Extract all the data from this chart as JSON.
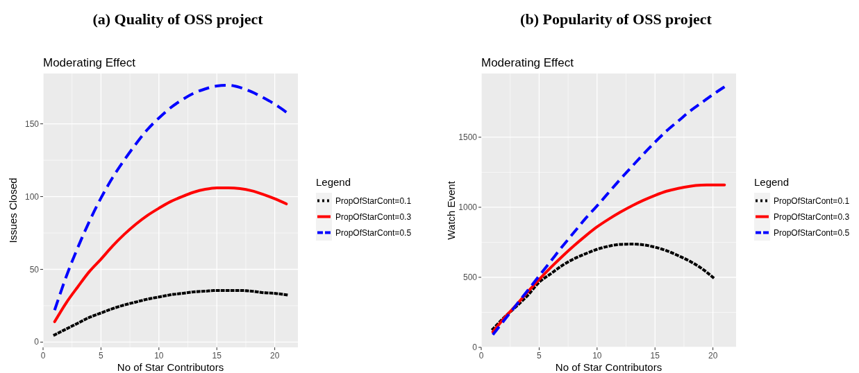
{
  "chart_data": [
    {
      "type": "line",
      "title": "(a) Quality of OSS project",
      "subtitle": "Moderating Effect",
      "xlabel": "No of Star Contributors",
      "ylabel": "Issues Closed",
      "legend_title": "Legend",
      "legend": "right",
      "grid": true,
      "xlim": [
        0,
        22
      ],
      "xticks": [
        0,
        5,
        10,
        15,
        20
      ],
      "ylim": [
        -3.6,
        184.6
      ],
      "yticks": [
        0,
        50,
        100,
        150
      ],
      "x": [
        1,
        2,
        3,
        4,
        5,
        6,
        7,
        8,
        9,
        10,
        11,
        12,
        13,
        14,
        15,
        16,
        17,
        18,
        19,
        20,
        21
      ],
      "series": [
        {
          "name": "PropOfStarCont=0.1",
          "color": "#000000",
          "line_style": "dotted",
          "values": [
            5,
            9,
            13,
            17,
            20,
            23,
            25.5,
            27.5,
            29.5,
            31,
            32.5,
            33.5,
            34.5,
            35,
            35.5,
            35.5,
            35.5,
            35,
            34,
            33.5,
            32.5
          ]
        },
        {
          "name": "PropOfStarCont=0.3",
          "color": "#ff0000",
          "line_style": "solid",
          "values": [
            14,
            27,
            38,
            48.5,
            57,
            66,
            74,
            81,
            87,
            92,
            96.5,
            100,
            103,
            105,
            106,
            106,
            105.5,
            104,
            101.5,
            98.5,
            95
          ]
        },
        {
          "name": "PropOfStarCont=0.5",
          "color": "#0000ff",
          "line_style": "dashed",
          "values": [
            22,
            45,
            65,
            83,
            99,
            113,
            125,
            136,
            146,
            154,
            161,
            166.5,
            171,
            174,
            176,
            176.5,
            175,
            172,
            168,
            163.5,
            158
          ]
        }
      ]
    },
    {
      "type": "line",
      "title": "(b) Popularity of OSS project",
      "subtitle": "Moderating Effect",
      "xlabel": "No of Star Contributors",
      "ylabel": "Watch Event",
      "legend_title": "Legend",
      "legend": "right",
      "grid": true,
      "xlim": [
        0,
        22
      ],
      "xticks": [
        0,
        5,
        10,
        15,
        20
      ],
      "ylim": [
        0,
        1955
      ],
      "yticks": [
        0,
        500,
        1000,
        1500
      ],
      "series": [
        {
          "name": "PropOfStarCont=0.1",
          "color": "#000000",
          "line_style": "dotted",
          "x": [
            1,
            2,
            3,
            4,
            5,
            6,
            7,
            8,
            9,
            10,
            11,
            12,
            13,
            14,
            15,
            16,
            17,
            18,
            19,
            20
          ],
          "values": [
            130,
            215,
            290,
            370,
            465,
            525,
            585,
            632,
            668,
            700,
            722,
            735,
            737,
            732,
            715,
            690,
            655,
            615,
            565,
            500
          ]
        },
        {
          "name": "PropOfStarCont=0.3",
          "color": "#ff0000",
          "line_style": "solid",
          "x": [
            1,
            2,
            3,
            4,
            5,
            6,
            7,
            8,
            9,
            10,
            11,
            12,
            13,
            14,
            15,
            16,
            17,
            18,
            19,
            20,
            21
          ],
          "values": [
            110,
            210,
            300,
            395,
            485,
            570,
            650,
            725,
            795,
            860,
            915,
            965,
            1010,
            1050,
            1085,
            1115,
            1135,
            1150,
            1158,
            1160,
            1160
          ]
        },
        {
          "name": "PropOfStarCont=0.5",
          "color": "#0000ff",
          "line_style": "dashed",
          "x": [
            1,
            2,
            3,
            4,
            5,
            6,
            7,
            8,
            9,
            10,
            11,
            12,
            13,
            14,
            15,
            16,
            17,
            18,
            19,
            20,
            21
          ],
          "values": [
            90,
            195,
            300,
            405,
            510,
            615,
            720,
            820,
            920,
            1010,
            1105,
            1200,
            1290,
            1380,
            1465,
            1545,
            1615,
            1685,
            1745,
            1805,
            1860
          ]
        }
      ]
    }
  ]
}
